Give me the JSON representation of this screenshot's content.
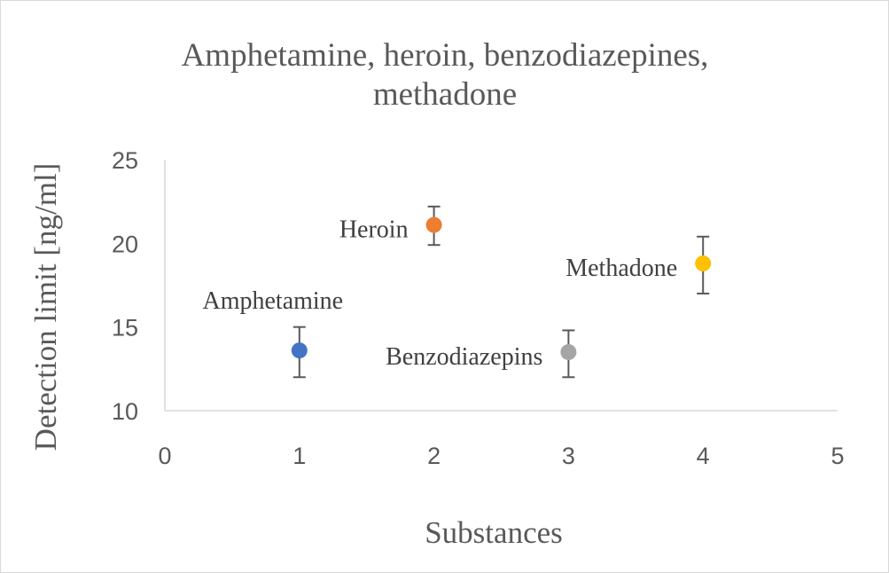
{
  "chart_data": {
    "type": "scatter",
    "title_lines": [
      "Amphetamine, heroin, benzodiazepines,",
      "methadone"
    ],
    "xlabel": "Substances",
    "ylabel": "Detection limit [ng/ml]",
    "xlim": [
      0,
      5
    ],
    "ylim": [
      10,
      25
    ],
    "xticks": [
      "0",
      "1",
      "2",
      "3",
      "4",
      "5"
    ],
    "yticks": [
      "10",
      "15",
      "20",
      "25"
    ],
    "grid": false,
    "legend": "none",
    "points": [
      {
        "label": "Amphetamine",
        "x": 1,
        "y": 13.6,
        "err_low": 12.0,
        "err_high": 15.0,
        "color": "#4472c4",
        "label_pos": "above"
      },
      {
        "label": "Heroin",
        "x": 2,
        "y": 21.1,
        "err_low": 19.9,
        "err_high": 22.2,
        "color": "#ed7d31",
        "label_pos": "left"
      },
      {
        "label": "Benzodiazepins",
        "x": 3,
        "y": 13.5,
        "err_low": 12.0,
        "err_high": 14.8,
        "color": "#a5a5a5",
        "label_pos": "left"
      },
      {
        "label": "Methadone",
        "x": 4,
        "y": 18.8,
        "err_low": 17.0,
        "err_high": 20.4,
        "color": "#ffc000",
        "label_pos": "left"
      }
    ]
  }
}
